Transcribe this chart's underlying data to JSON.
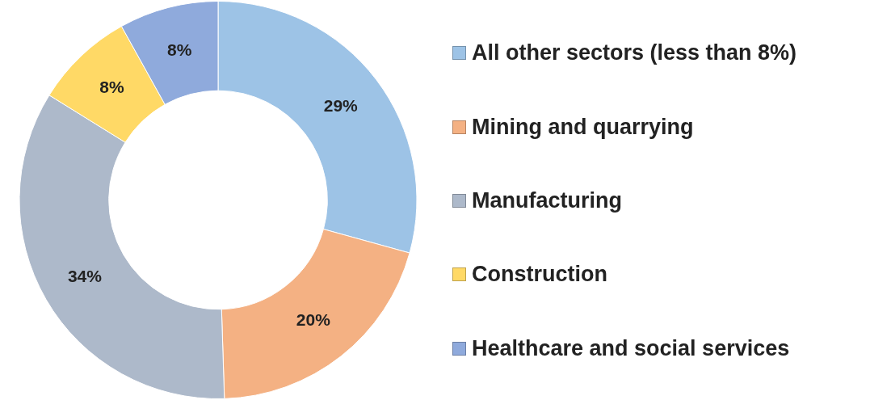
{
  "chart_data": {
    "type": "donut",
    "categories": [
      "All other sectors (less than 8%)",
      "Mining and quarrying",
      "Manufacturing",
      "Construction",
      "Healthcare and social services"
    ],
    "values": [
      29,
      20,
      34,
      8,
      8
    ],
    "colors": [
      "#9dc3e6",
      "#f4b183",
      "#adb9ca",
      "#ffd966",
      "#8faadc"
    ],
    "value_labels": [
      "29%",
      "20%",
      "34%",
      "8%",
      "8%"
    ],
    "legend": "right"
  }
}
